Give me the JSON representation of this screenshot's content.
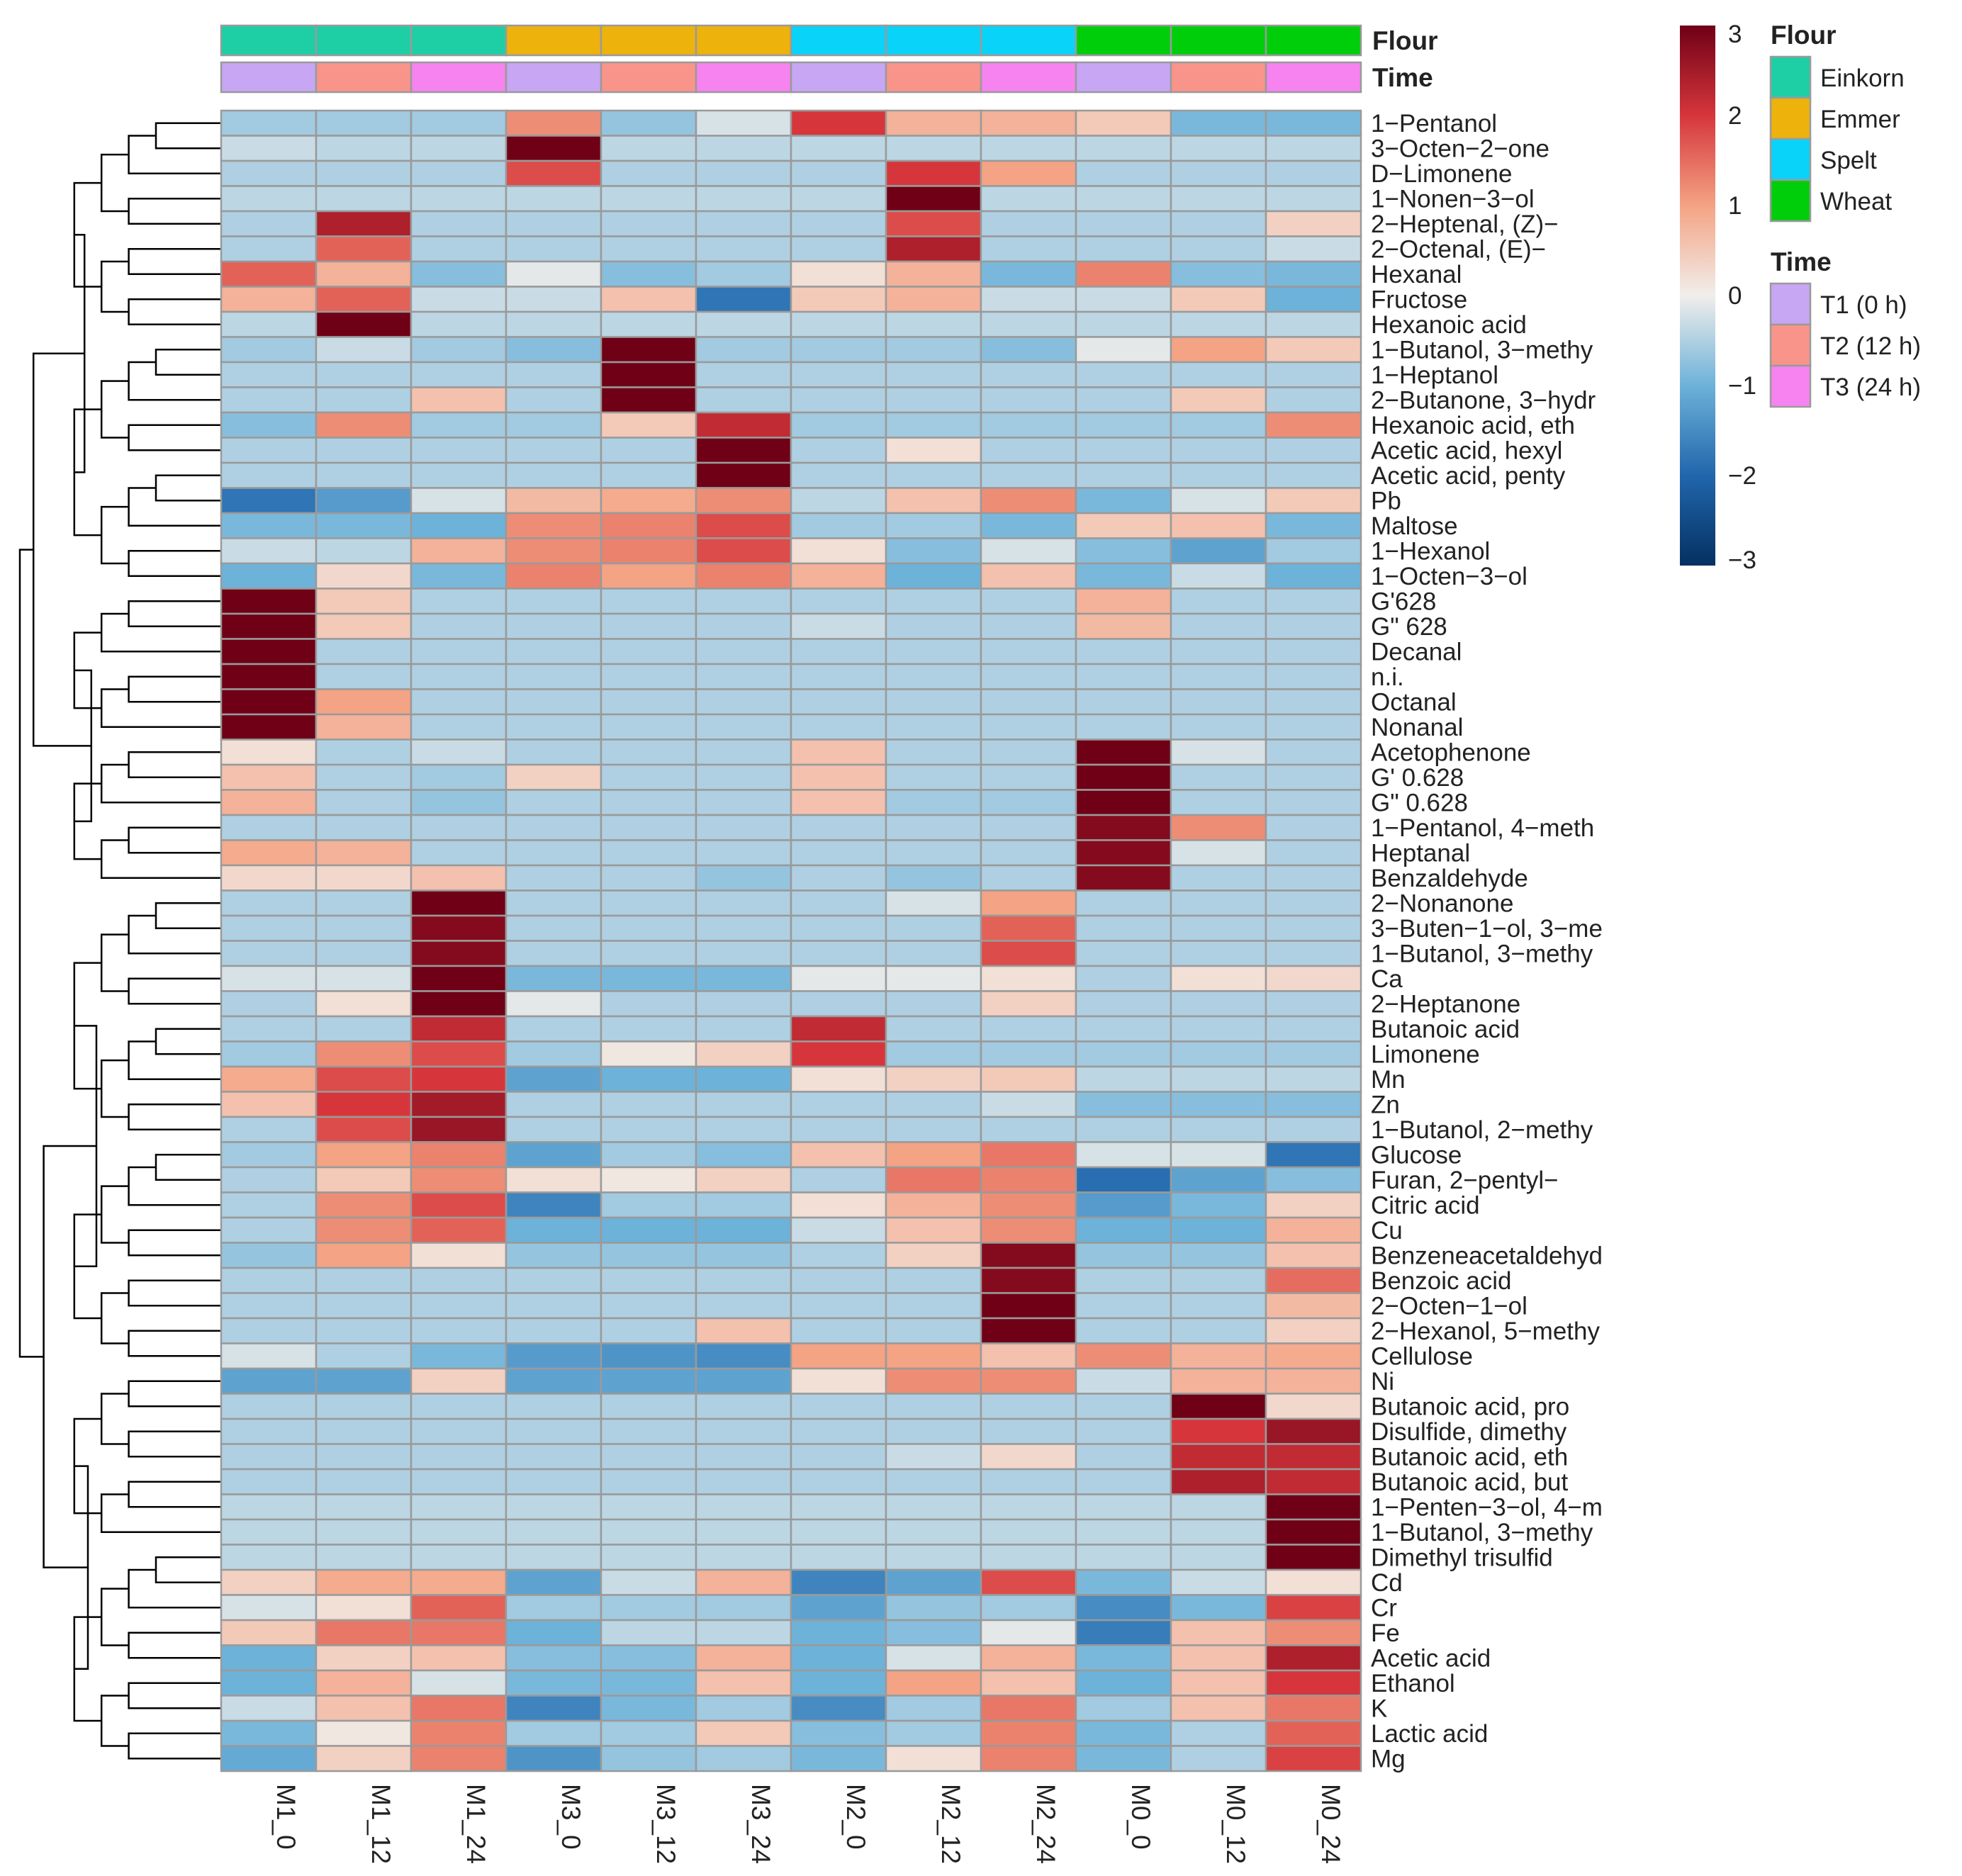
{
  "chart_data": {
    "type": "heatmap",
    "columns": [
      "M1_0",
      "M1_12",
      "M1_24",
      "M3_0",
      "M3_12",
      "M3_24",
      "M2_0",
      "M2_12",
      "M2_24",
      "M0_0",
      "M0_12",
      "M0_24"
    ],
    "rows": [
      "1−Pentanol",
      "3−Octen−2−one",
      "D−Limonene",
      "1−Nonen−3−ol",
      "2−Heptenal, (Z)−",
      "2−Octenal, (E)−",
      "Hexanal",
      "Fructose",
      "Hexanoic acid",
      "1−Butanol, 3−methy",
      "1−Heptanol",
      "2−Butanone, 3−hydr",
      "Hexanoic acid, eth",
      "Acetic acid, hexyl",
      "Acetic acid, penty",
      "Pb",
      "Maltose",
      "1−Hexanol",
      "1−Octen−3−ol",
      "G'628",
      "G\" 628",
      "Decanal",
      "n.i.",
      "Octanal",
      "Nonanal",
      "Acetophenone",
      "G' 0.628",
      "G\" 0.628",
      "1−Pentanol, 4−meth",
      "Heptanal",
      "Benzaldehyde",
      "2−Nonanone",
      "3−Buten−1−ol, 3−me",
      "1−Butanol, 3−methy",
      "Ca",
      "2−Heptanone",
      "Butanoic acid",
      "Limonene",
      "Mn",
      "Zn",
      "1−Butanol, 2−methy",
      "Glucose",
      "Furan, 2−pentyl−",
      "Citric acid",
      "Cu",
      "Benzeneacetaldehyd",
      "Benzoic acid",
      "2−Octen−1−ol",
      "2−Hexanol, 5−methy",
      "Cellulose",
      "Ni",
      "Butanoic acid, pro",
      "Disulfide, dimethy",
      "Butanoic acid, eth",
      "Butanoic acid, but",
      "1−Penten−3−ol, 4−m",
      "1−Butanol, 3−methy",
      "Dimethyl trisulfid",
      "Cd",
      "Cr",
      "Fe",
      "Acetic acid",
      "Ethanol",
      "K",
      "Lactic acid",
      "Mg"
    ],
    "values": [
      [
        -0.6,
        -0.6,
        -0.6,
        1.2,
        -0.7,
        -0.2,
        2.0,
        0.8,
        0.8,
        0.5,
        -0.9,
        -0.9
      ],
      [
        -0.3,
        -0.4,
        -0.4,
        3.0,
        -0.4,
        -0.4,
        -0.4,
        -0.4,
        -0.4,
        -0.4,
        -0.4,
        -0.4
      ],
      [
        -0.5,
        -0.5,
        -0.5,
        1.8,
        -0.5,
        -0.5,
        -0.5,
        2.0,
        1.0,
        -0.5,
        -0.5,
        -0.5
      ],
      [
        -0.4,
        -0.4,
        -0.4,
        -0.4,
        -0.4,
        -0.4,
        -0.4,
        3.0,
        -0.4,
        -0.4,
        -0.4,
        -0.4
      ],
      [
        -0.5,
        2.4,
        -0.5,
        -0.5,
        -0.5,
        -0.5,
        -0.5,
        1.8,
        -0.5,
        -0.5,
        -0.5,
        0.4
      ],
      [
        -0.5,
        1.6,
        -0.5,
        -0.5,
        -0.5,
        -0.5,
        -0.5,
        2.4,
        -0.5,
        -0.5,
        -0.5,
        -0.3
      ],
      [
        1.6,
        0.8,
        -0.8,
        -0.1,
        -0.8,
        -0.6,
        0.2,
        0.8,
        -0.9,
        1.3,
        -0.8,
        -0.9
      ],
      [
        0.8,
        1.6,
        -0.3,
        -0.3,
        0.6,
        -1.8,
        0.5,
        0.8,
        -0.3,
        -0.3,
        0.5,
        -1.0
      ],
      [
        -0.4,
        3.0,
        -0.4,
        -0.4,
        -0.4,
        -0.4,
        -0.4,
        -0.4,
        -0.4,
        -0.4,
        -0.4,
        -0.4
      ],
      [
        -0.6,
        -0.3,
        -0.6,
        -0.8,
        3.0,
        -0.6,
        -0.6,
        -0.6,
        -0.8,
        -0.1,
        1.0,
        0.5
      ],
      [
        -0.5,
        -0.5,
        -0.5,
        -0.5,
        3.0,
        -0.5,
        -0.5,
        -0.5,
        -0.5,
        -0.5,
        -0.5,
        -0.5
      ],
      [
        -0.5,
        -0.5,
        0.6,
        -0.5,
        3.0,
        -0.5,
        -0.5,
        -0.5,
        -0.5,
        -0.5,
        0.5,
        -0.5
      ],
      [
        -0.8,
        1.2,
        -0.6,
        -0.6,
        0.5,
        2.2,
        -0.6,
        -0.6,
        -0.6,
        -0.6,
        -0.6,
        1.2
      ],
      [
        -0.5,
        -0.5,
        -0.5,
        -0.5,
        -0.5,
        3.0,
        -0.5,
        0.2,
        -0.5,
        -0.5,
        -0.5,
        -0.5
      ],
      [
        -0.5,
        -0.5,
        -0.5,
        -0.5,
        -0.5,
        3.0,
        -0.5,
        -0.5,
        -0.5,
        -0.5,
        -0.5,
        -0.5
      ],
      [
        -1.8,
        -1.3,
        -0.2,
        0.7,
        0.9,
        1.2,
        -0.4,
        0.6,
        1.2,
        -0.9,
        -0.2,
        0.5
      ],
      [
        -0.9,
        -0.9,
        -1.0,
        1.2,
        1.3,
        1.8,
        -0.6,
        -0.6,
        -0.9,
        0.5,
        0.6,
        -0.9
      ],
      [
        -0.3,
        -0.4,
        0.8,
        1.2,
        1.3,
        1.8,
        0.2,
        -0.8,
        -0.2,
        -0.8,
        -1.2,
        -0.6
      ],
      [
        -1.0,
        0.3,
        -0.9,
        1.3,
        1.0,
        1.3,
        0.8,
        -1.0,
        0.6,
        -0.9,
        -0.3,
        -1.0
      ],
      [
        3.0,
        0.5,
        -0.5,
        -0.5,
        -0.5,
        -0.5,
        -0.5,
        -0.5,
        -0.5,
        0.8,
        -0.5,
        -0.5
      ],
      [
        3.0,
        0.5,
        -0.5,
        -0.5,
        -0.5,
        -0.5,
        -0.3,
        -0.5,
        -0.5,
        0.7,
        -0.5,
        -0.5
      ],
      [
        3.0,
        -0.5,
        -0.5,
        -0.5,
        -0.5,
        -0.5,
        -0.5,
        -0.5,
        -0.5,
        -0.5,
        -0.5,
        -0.5
      ],
      [
        3.0,
        -0.5,
        -0.5,
        -0.5,
        -0.5,
        -0.5,
        -0.5,
        -0.5,
        -0.5,
        -0.5,
        -0.5,
        -0.5
      ],
      [
        3.0,
        1.0,
        -0.5,
        -0.5,
        -0.5,
        -0.5,
        -0.5,
        -0.5,
        -0.5,
        -0.5,
        -0.5,
        -0.5
      ],
      [
        3.0,
        0.8,
        -0.5,
        -0.5,
        -0.5,
        -0.5,
        -0.5,
        -0.5,
        -0.5,
        -0.5,
        -0.5,
        -0.5
      ],
      [
        0.2,
        -0.5,
        -0.3,
        -0.5,
        -0.5,
        -0.5,
        0.6,
        -0.5,
        -0.5,
        3.0,
        -0.2,
        -0.5
      ],
      [
        0.6,
        -0.5,
        -0.6,
        0.4,
        -0.5,
        -0.5,
        0.6,
        -0.5,
        -0.5,
        3.0,
        -0.5,
        -0.5
      ],
      [
        0.8,
        -0.5,
        -0.7,
        -0.5,
        -0.5,
        -0.5,
        0.6,
        -0.6,
        -0.6,
        3.0,
        -0.5,
        -0.5
      ],
      [
        -0.5,
        -0.5,
        -0.5,
        -0.5,
        -0.5,
        -0.5,
        -0.5,
        -0.5,
        -0.5,
        2.8,
        1.2,
        -0.5
      ],
      [
        0.9,
        0.8,
        -0.5,
        -0.5,
        -0.5,
        -0.5,
        -0.5,
        -0.5,
        -0.5,
        2.8,
        -0.2,
        -0.5
      ],
      [
        0.3,
        0.3,
        0.6,
        -0.5,
        -0.5,
        -0.7,
        -0.5,
        -0.7,
        -0.5,
        2.8,
        -0.5,
        -0.5
      ],
      [
        -0.5,
        -0.5,
        3.0,
        -0.5,
        -0.5,
        -0.5,
        -0.5,
        -0.2,
        1.0,
        -0.5,
        -0.5,
        -0.5
      ],
      [
        -0.5,
        -0.5,
        2.8,
        -0.5,
        -0.5,
        -0.5,
        -0.5,
        -0.5,
        1.6,
        -0.5,
        -0.5,
        -0.5
      ],
      [
        -0.5,
        -0.5,
        2.8,
        -0.5,
        -0.5,
        -0.5,
        -0.5,
        -0.5,
        1.8,
        -0.5,
        -0.5,
        -0.5
      ],
      [
        -0.2,
        -0.2,
        3.0,
        -0.9,
        -0.9,
        -0.9,
        -0.1,
        -0.1,
        0.2,
        -0.5,
        0.2,
        0.3
      ],
      [
        -0.5,
        0.2,
        3.0,
        -0.1,
        -0.5,
        -0.5,
        -0.5,
        -0.5,
        0.4,
        -0.5,
        -0.5,
        -0.5
      ],
      [
        -0.5,
        -0.5,
        2.2,
        -0.5,
        -0.5,
        -0.5,
        2.2,
        -0.5,
        -0.5,
        -0.5,
        -0.5,
        -0.5
      ],
      [
        -0.6,
        1.2,
        1.8,
        -0.6,
        0.1,
        0.4,
        2.0,
        -0.6,
        -0.6,
        -0.6,
        -0.6,
        -0.6
      ],
      [
        0.9,
        1.8,
        2.0,
        -1.2,
        -1.0,
        -1.0,
        0.2,
        0.4,
        0.5,
        -0.4,
        -0.4,
        -0.4
      ],
      [
        0.6,
        2.0,
        2.5,
        -0.5,
        -0.5,
        -0.5,
        -0.5,
        -0.5,
        -0.3,
        -0.8,
        -0.8,
        -0.8
      ],
      [
        -0.5,
        1.8,
        2.6,
        -0.5,
        -0.5,
        -0.5,
        -0.5,
        -0.5,
        -0.5,
        -0.5,
        -0.5,
        -0.5
      ],
      [
        -0.6,
        1.0,
        1.3,
        -1.2,
        -0.6,
        -0.8,
        0.6,
        1.0,
        1.4,
        -0.2,
        -0.2,
        -1.8
      ],
      [
        -0.5,
        0.5,
        1.2,
        0.2,
        0.1,
        0.4,
        -0.5,
        1.4,
        1.3,
        -1.9,
        -1.2,
        -0.8
      ],
      [
        -0.5,
        1.2,
        1.8,
        -1.6,
        -0.6,
        -0.6,
        0.2,
        0.8,
        1.2,
        -1.3,
        -0.9,
        0.4
      ],
      [
        -0.5,
        1.2,
        1.6,
        -1.0,
        -1.0,
        -1.0,
        -0.3,
        0.6,
        1.2,
        -1.0,
        -1.0,
        0.8
      ],
      [
        -0.7,
        1.0,
        0.2,
        -0.7,
        -0.7,
        -0.7,
        -0.5,
        0.4,
        2.8,
        -0.7,
        -0.7,
        0.6
      ],
      [
        -0.5,
        -0.5,
        -0.5,
        -0.5,
        -0.5,
        -0.5,
        -0.5,
        -0.5,
        2.8,
        -0.5,
        -0.5,
        1.5
      ],
      [
        -0.5,
        -0.5,
        -0.5,
        -0.5,
        -0.5,
        -0.5,
        -0.5,
        -0.5,
        3.0,
        -0.5,
        -0.5,
        0.7
      ],
      [
        -0.5,
        -0.5,
        -0.5,
        -0.5,
        -0.5,
        0.6,
        -0.5,
        -0.5,
        3.0,
        -0.5,
        -0.5,
        0.4
      ],
      [
        -0.2,
        -0.5,
        -0.9,
        -1.3,
        -1.4,
        -1.5,
        1.0,
        1.0,
        0.6,
        1.2,
        0.8,
        0.9
      ],
      [
        -1.2,
        -1.2,
        0.4,
        -1.2,
        -1.2,
        -1.2,
        0.2,
        1.2,
        1.2,
        -0.3,
        0.8,
        0.8
      ],
      [
        -0.5,
        -0.5,
        -0.5,
        -0.5,
        -0.5,
        -0.5,
        -0.5,
        -0.5,
        -0.5,
        -0.5,
        3.0,
        0.3
      ],
      [
        -0.5,
        -0.5,
        -0.5,
        -0.5,
        -0.5,
        -0.5,
        -0.5,
        -0.5,
        -0.5,
        -0.5,
        2.0,
        2.6
      ],
      [
        -0.5,
        -0.5,
        -0.5,
        -0.5,
        -0.5,
        -0.5,
        -0.5,
        -0.3,
        0.3,
        -0.5,
        2.2,
        2.2
      ],
      [
        -0.5,
        -0.5,
        -0.5,
        -0.5,
        -0.5,
        -0.5,
        -0.5,
        -0.5,
        -0.5,
        -0.5,
        2.4,
        2.2
      ],
      [
        -0.4,
        -0.4,
        -0.4,
        -0.4,
        -0.4,
        -0.4,
        -0.4,
        -0.4,
        -0.4,
        -0.4,
        -0.4,
        3.0
      ],
      [
        -0.4,
        -0.4,
        -0.4,
        -0.4,
        -0.4,
        -0.4,
        -0.4,
        -0.4,
        -0.4,
        -0.4,
        -0.4,
        3.0
      ],
      [
        -0.4,
        -0.4,
        -0.4,
        -0.4,
        -0.4,
        -0.4,
        -0.4,
        -0.4,
        -0.4,
        -0.4,
        -0.4,
        3.0
      ],
      [
        0.4,
        0.9,
        0.9,
        -1.2,
        -0.3,
        0.8,
        -1.6,
        -1.2,
        1.8,
        -0.9,
        -0.3,
        0.2
      ],
      [
        -0.2,
        0.2,
        1.6,
        -0.6,
        -0.6,
        -0.6,
        -1.2,
        -0.7,
        -0.6,
        -1.5,
        -0.9,
        1.9
      ],
      [
        0.5,
        1.4,
        1.4,
        -1.0,
        -0.4,
        -0.4,
        -1.0,
        -0.8,
        -0.1,
        -1.7,
        0.6,
        1.2
      ],
      [
        -1.0,
        0.4,
        0.6,
        -0.8,
        -0.8,
        0.8,
        -1.0,
        -0.2,
        0.8,
        -0.9,
        0.6,
        2.4
      ],
      [
        -1.0,
        0.8,
        -0.2,
        -0.9,
        -0.9,
        0.6,
        -1.0,
        1.0,
        0.6,
        -1.0,
        0.6,
        2.0
      ],
      [
        -0.3,
        0.6,
        1.4,
        -1.6,
        -0.9,
        -0.6,
        -1.5,
        -0.6,
        1.4,
        -0.6,
        0.6,
        1.4
      ],
      [
        -0.9,
        0.1,
        1.3,
        -0.6,
        -0.6,
        0.5,
        -0.8,
        -0.6,
        1.3,
        -0.9,
        -0.5,
        1.6
      ],
      [
        -1.1,
        0.4,
        1.3,
        -1.4,
        -0.7,
        -0.6,
        -0.9,
        0.2,
        1.3,
        -0.9,
        -0.5,
        1.9
      ]
    ],
    "column_annotations": {
      "Flour": [
        "Einkorn",
        "Einkorn",
        "Einkorn",
        "Emmer",
        "Emmer",
        "Emmer",
        "Spelt",
        "Spelt",
        "Spelt",
        "Wheat",
        "Wheat",
        "Wheat"
      ],
      "Time": [
        "T1 (0 h)",
        "T2 (12 h)",
        "T3 (24 h)",
        "T1 (0 h)",
        "T2 (12 h)",
        "T3 (24 h)",
        "T1 (0 h)",
        "T2 (12 h)",
        "T3 (24 h)",
        "T1 (0 h)",
        "T2 (12 h)",
        "T3 (24 h)"
      ]
    },
    "annotation_labels": {
      "flour": "Flour",
      "time": "Time"
    },
    "color_scale": {
      "range": [
        -3,
        3
      ],
      "ticks": [
        3,
        2,
        1,
        0,
        -1,
        -2,
        -3
      ],
      "tick_labels": [
        "3",
        "2",
        "1",
        "0",
        "−1",
        "−2",
        "−3"
      ],
      "stops": [
        {
          "v": -3,
          "color": "#053061"
        },
        {
          "v": -2,
          "color": "#2166ac"
        },
        {
          "v": -1,
          "color": "#6db2d9"
        },
        {
          "v": 0,
          "color": "#f1eeeb"
        },
        {
          "v": 1,
          "color": "#f4a384"
        },
        {
          "v": 2,
          "color": "#d6363b"
        },
        {
          "v": 3,
          "color": "#6f0016"
        }
      ]
    },
    "legend": {
      "flour": {
        "title": "Flour",
        "items": [
          {
            "label": "Einkorn",
            "color": "#1ecfa6"
          },
          {
            "label": "Emmer",
            "color": "#edb20c"
          },
          {
            "label": "Spelt",
            "color": "#0ad3f9"
          },
          {
            "label": "Wheat",
            "color": "#00ce0b"
          }
        ]
      },
      "time": {
        "title": "Time",
        "items": [
          {
            "label": "T1 (0 h)",
            "color": "#c7a6f3"
          },
          {
            "label": "T2 (12 h)",
            "color": "#f9948a"
          },
          {
            "label": "T3 (24 h)",
            "color": "#f683ef"
          }
        ]
      }
    },
    "title": "",
    "xlabel": "",
    "ylabel": ""
  }
}
